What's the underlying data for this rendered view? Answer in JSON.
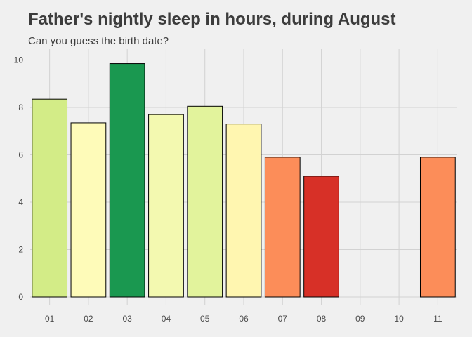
{
  "colors": {
    "background": "#f0f0f0",
    "grid": "#d2d2d2",
    "bar_outline": "#000000",
    "text": "#3c3c3c"
  },
  "chart_data": {
    "type": "bar",
    "title": "Father's nightly sleep in hours, during August",
    "subtitle": "Can you guess the birth date?",
    "xlabel": "",
    "ylabel": "",
    "categories": [
      "01",
      "02",
      "03",
      "04",
      "05",
      "06",
      "07",
      "08",
      "09",
      "10",
      "11"
    ],
    "values": [
      8.35,
      7.35,
      9.85,
      7.7,
      8.05,
      7.3,
      5.9,
      5.1,
      null,
      null,
      5.9
    ],
    "bar_colors": [
      "#d3ec87",
      "#fefbb9",
      "#1a9850",
      "#f3f9b0",
      "#e2f39c",
      "#fff6b0",
      "#fc8d59",
      "#d73027",
      null,
      null,
      "#fc8d59"
    ],
    "ylim": [
      0,
      10.4
    ],
    "yticks": [
      0,
      2,
      4,
      6,
      8,
      10
    ],
    "grid": true,
    "legend": "none"
  }
}
